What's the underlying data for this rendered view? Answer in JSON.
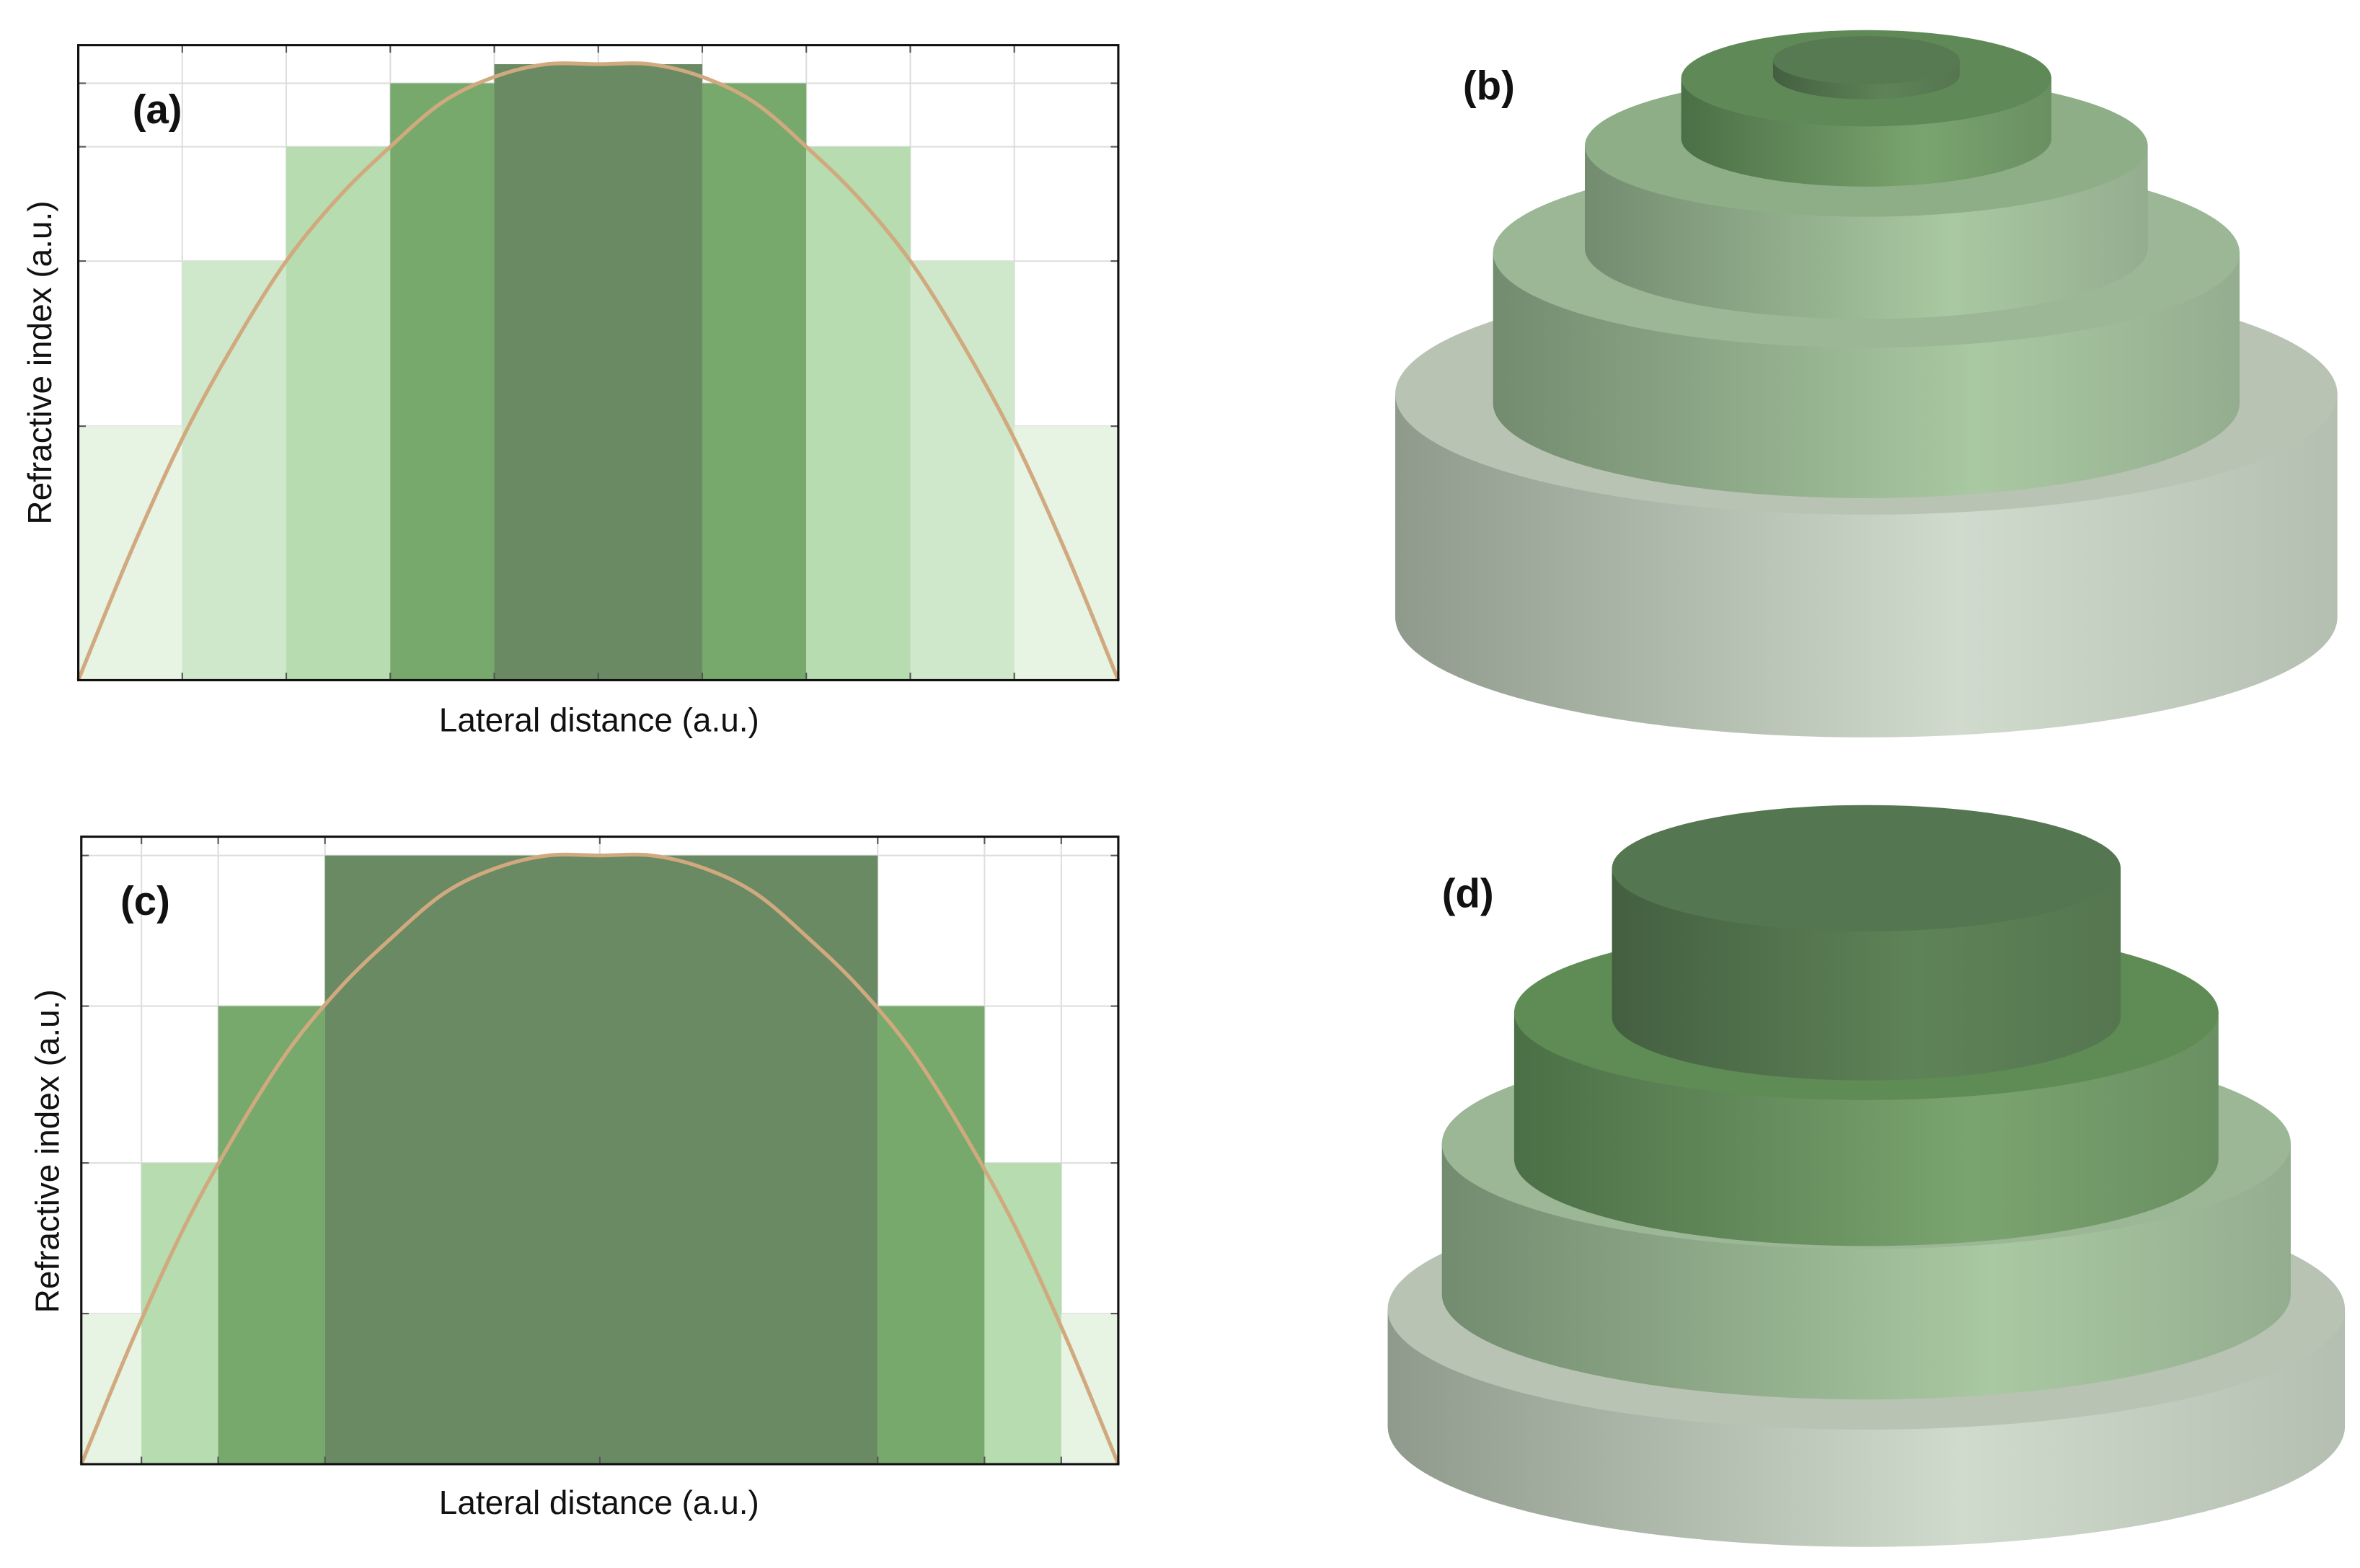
{
  "chart_data": [
    {
      "type": "histogram",
      "panel_label": "(a)",
      "x_label": "Lateral distance (a.u.)",
      "y_label": "Refractive index (a.u.)",
      "bins": [
        0,
        0.1,
        0.2,
        0.3,
        0.4,
        0.6,
        0.7,
        0.8,
        0.9,
        1.0
      ],
      "values": [
        0.4,
        0.66,
        0.84,
        0.94,
        0.97,
        0.94,
        0.84,
        0.66,
        0.4
      ],
      "colors": [
        "#e7f3e3",
        "#cfe8cb",
        "#b6dcaf",
        "#77a96c",
        "#6a8a64",
        "#77a96c",
        "#b6dcaf",
        "#cfe8cb",
        "#e7f3e3"
      ],
      "curve": {
        "color": "#d1a97f",
        "x": [
          0,
          0.05,
          0.1,
          0.15,
          0.2,
          0.25,
          0.3,
          0.35,
          0.4,
          0.45,
          0.5,
          0.55,
          0.6,
          0.65,
          0.7,
          0.75,
          0.8,
          0.85,
          0.9,
          0.95,
          1.0
        ],
        "values": [
          0,
          0.2,
          0.38,
          0.53,
          0.66,
          0.76,
          0.84,
          0.91,
          0.95,
          0.97,
          0.97,
          0.97,
          0.95,
          0.91,
          0.84,
          0.76,
          0.66,
          0.53,
          0.38,
          0.2,
          0
        ]
      },
      "xlim": [
        0,
        1
      ],
      "ylim": [
        0,
        1
      ],
      "xticks": [
        0.1,
        0.2,
        0.3,
        0.4,
        0.5,
        0.6,
        0.7,
        0.8,
        0.9
      ],
      "yticks": [
        0.4,
        0.66,
        0.84,
        0.94
      ],
      "grid": true
    },
    {
      "type": "histogram",
      "panel_label": "(c)",
      "x_label": "Lateral distance (a.u.)",
      "y_label": "Refractive index (a.u.)",
      "bins": [
        0,
        0.058,
        0.132,
        0.235,
        0.768,
        0.871,
        0.945,
        1.0
      ],
      "values": [
        0.24,
        0.48,
        0.73,
        0.97,
        0.73,
        0.48,
        0.24
      ],
      "colors": [
        "#e7f3e3",
        "#b6dcaf",
        "#77a96c",
        "#6a8a64",
        "#77a96c",
        "#b6dcaf",
        "#e7f3e3"
      ],
      "curve": {
        "color": "#d1a97f",
        "x": [
          0,
          0.05,
          0.1,
          0.15,
          0.2,
          0.25,
          0.3,
          0.35,
          0.4,
          0.45,
          0.5,
          0.55,
          0.6,
          0.65,
          0.7,
          0.75,
          0.8,
          0.85,
          0.9,
          0.95,
          1.0
        ],
        "values": [
          0,
          0.2,
          0.38,
          0.53,
          0.66,
          0.76,
          0.84,
          0.91,
          0.95,
          0.97,
          0.97,
          0.97,
          0.95,
          0.91,
          0.84,
          0.76,
          0.66,
          0.53,
          0.38,
          0.2,
          0
        ]
      },
      "xlim": [
        0,
        1
      ],
      "ylim": [
        0,
        1
      ],
      "xticks": [
        0.058,
        0.132,
        0.235,
        0.5,
        0.768,
        0.871,
        0.945
      ],
      "yticks": [
        0.24,
        0.48,
        0.73,
        0.97
      ],
      "grid": true
    }
  ],
  "diagrams": [
    {
      "label": "(b)"
    },
    {
      "label": "(d)"
    }
  ]
}
